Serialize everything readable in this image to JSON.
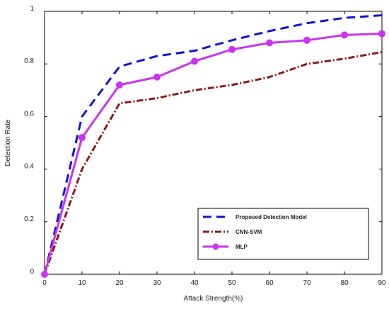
{
  "chart_data": {
    "type": "line",
    "title": "",
    "xlabel": "Attack Strength(%)",
    "ylabel": "Detection Rate",
    "x": [
      0,
      10,
      20,
      30,
      40,
      50,
      60,
      70,
      80,
      90
    ],
    "xlim": [
      0,
      90
    ],
    "ylim": [
      0,
      1
    ],
    "x_ticks": [
      "0",
      "10",
      "20",
      "30",
      "40",
      "50",
      "60",
      "70",
      "80",
      "90"
    ],
    "y_ticks": [
      "0",
      "0.2",
      "0.4",
      "0.6",
      "0.8",
      "1"
    ],
    "grid": false,
    "legend_position": "bottom-right",
    "series": [
      {
        "name": "Proposed Detection Model",
        "values": [
          0,
          0.6,
          0.79,
          0.83,
          0.85,
          0.89,
          0.925,
          0.955,
          0.975,
          0.985
        ],
        "color": "#1111dd",
        "style": "dashed"
      },
      {
        "name": "CNN-SVM",
        "values": [
          0,
          0.4,
          0.65,
          0.67,
          0.7,
          0.72,
          0.75,
          0.8,
          0.82,
          0.845
        ],
        "color": "#8b1a1a",
        "style": "dash-dot"
      },
      {
        "name": "MLP",
        "values": [
          0,
          0.52,
          0.72,
          0.75,
          0.81,
          0.855,
          0.88,
          0.89,
          0.91,
          0.915
        ],
        "color": "#cc33ee",
        "style": "solid-markers"
      }
    ]
  }
}
